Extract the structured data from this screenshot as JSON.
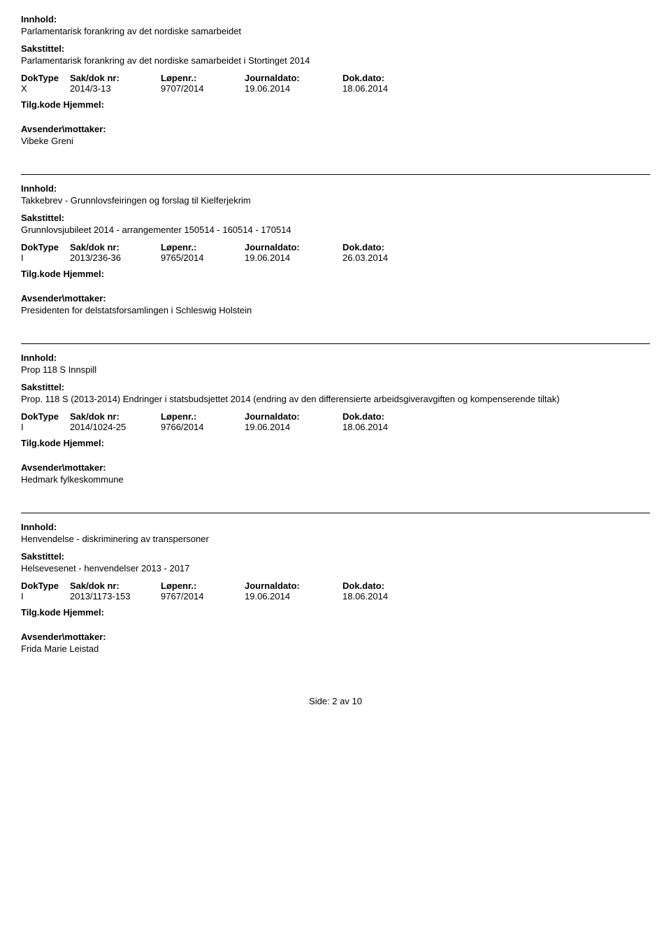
{
  "labels": {
    "innhold": "Innhold:",
    "sakstittel": "Sakstittel:",
    "doktype": "DokType",
    "sakdok": "Sak/dok nr:",
    "lopenr": "Løpenr.:",
    "journaldato": "Journaldato:",
    "dokdato": "Dok.dato:",
    "tilgkode": "Tilg.kode",
    "hjemmel": "Hjemmel:",
    "avsender": "Avsender\\mottaker:"
  },
  "entries": [
    {
      "innhold": "Parlamentarisk forankring av det nordiske samarbeidet",
      "sakstittel": "Parlamentarisk forankring av det nordiske samarbeidet i Stortinget 2014",
      "doktype": "X",
      "sakdok": "2014/3-13",
      "lopenr": "9707/2014",
      "journaldato": "19.06.2014",
      "dokdato": "18.06.2014",
      "avsender": "Vibeke Greni"
    },
    {
      "innhold": "Takkebrev - Grunnlovsfeiringen og forslag til Kielferjekrim",
      "sakstittel": "Grunnlovsjubileet 2014 - arrangementer 150514 - 160514 - 170514",
      "doktype": "I",
      "sakdok": "2013/236-36",
      "lopenr": "9765/2014",
      "journaldato": "19.06.2014",
      "dokdato": "26.03.2014",
      "avsender": "Presidenten for delstatsforsamlingen i Schleswig Holstein"
    },
    {
      "innhold": "Prop 118 S Innspill",
      "sakstittel": "Prop. 118 S (2013-2014) Endringer i statsbudsjettet 2014 (endring av den differensierte arbeidsgiveravgiften og kompenserende tiltak)",
      "doktype": "I",
      "sakdok": "2014/1024-25",
      "lopenr": "9766/2014",
      "journaldato": "19.06.2014",
      "dokdato": "18.06.2014",
      "avsender": "Hedmark fylkeskommune"
    },
    {
      "innhold": "Henvendelse - diskriminering av transpersoner",
      "sakstittel": "Helsevesenet - henvendelser 2013 - 2017",
      "doktype": "I",
      "sakdok": "2013/1173-153",
      "lopenr": "9767/2014",
      "journaldato": "19.06.2014",
      "dokdato": "18.06.2014",
      "avsender": "Frida Marie Leistad"
    }
  ],
  "footer": {
    "text": "Side: 2 av 10"
  }
}
